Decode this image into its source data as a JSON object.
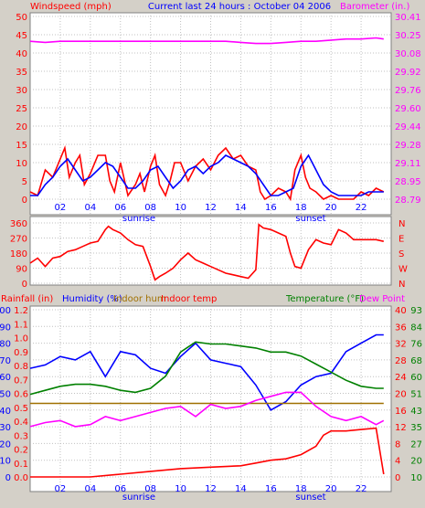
{
  "header": {
    "left": "Windspeed (mph)",
    "center": "Current last 24 hours : October 04 2006",
    "right": "Barometer (in.)"
  },
  "x_ticks": [
    "02",
    "04",
    "06",
    "08",
    "10",
    "12",
    "14",
    "16",
    "18",
    "20",
    "22"
  ],
  "sun_labels": {
    "sunrise": "sunrise",
    "sunset": "sunset"
  },
  "colors": {
    "red": "#ff0000",
    "blue": "#0000ff",
    "magenta": "#ff00ff",
    "green": "#008000",
    "olive": "#a07000",
    "bg": "#ffffff",
    "frame": "#d4d0c8"
  },
  "chart_data": [
    {
      "type": "line",
      "panel": "wind_barometer",
      "x_range_hours": [
        0,
        24
      ],
      "left_axis": {
        "label": "Windspeed (mph)",
        "ylim": [
          0,
          50
        ],
        "ticks": [
          "0",
          "5",
          "10",
          "15",
          "20",
          "25",
          "30",
          "35",
          "40",
          "45",
          "50"
        ]
      },
      "right_axis": {
        "label": "Barometer (in.)",
        "ylim": [
          28.79,
          30.41
        ],
        "ticks": [
          "28.79",
          "28.95",
          "29.11",
          "29.28",
          "29.44",
          "29.60",
          "29.76",
          "29.92",
          "30.08",
          "30.25",
          "30.41"
        ]
      },
      "series": [
        {
          "color": "red",
          "axis": "left",
          "x": [
            0,
            0.5,
            1,
            1.5,
            2,
            2.3,
            2.6,
            3,
            3.3,
            3.6,
            4,
            4.5,
            5,
            5.3,
            5.6,
            6,
            6.5,
            7,
            7.3,
            7.6,
            8,
            8.3,
            8.6,
            9,
            9.3,
            9.6,
            10,
            10.5,
            11,
            11.5,
            12,
            12.5,
            13,
            13.5,
            14,
            14.5,
            15,
            15.3,
            15.6,
            16,
            16.5,
            17,
            17.3,
            17.6,
            18,
            18.3,
            18.6,
            19,
            19.5,
            20,
            20.5,
            21,
            21.5,
            22,
            22.5,
            23,
            23.5
          ],
          "values": [
            2,
            1,
            8,
            6,
            11,
            14,
            6,
            10,
            12,
            4,
            7,
            12,
            12,
            5,
            2,
            10,
            1,
            4,
            7,
            2,
            9,
            12,
            4,
            1,
            5,
            10,
            10,
            5,
            9,
            11,
            8,
            12,
            14,
            11,
            12,
            9,
            8,
            2,
            0,
            1,
            3,
            2,
            0,
            8,
            12,
            6,
            3,
            2,
            0,
            1,
            0,
            0,
            0,
            2,
            1,
            3,
            2
          ]
        },
        {
          "color": "blue",
          "axis": "left",
          "x": [
            0,
            0.5,
            1,
            1.5,
            2,
            2.5,
            3,
            3.5,
            4,
            4.5,
            5,
            5.5,
            6,
            6.5,
            7,
            7.5,
            8,
            8.5,
            9,
            9.5,
            10,
            10.5,
            11,
            11.5,
            12,
            12.5,
            13,
            13.5,
            14,
            14.5,
            15,
            15.5,
            16,
            16.5,
            17,
            17.5,
            18,
            18.5,
            19,
            19.5,
            20,
            20.5,
            21,
            21.5,
            22,
            22.5,
            23,
            23.5
          ],
          "values": [
            1,
            1,
            4,
            6,
            9,
            11,
            8,
            5,
            6,
            8,
            10,
            9,
            6,
            3,
            3,
            5,
            8,
            9,
            6,
            3,
            5,
            8,
            9,
            7,
            9,
            10,
            12,
            11,
            10,
            9,
            7,
            4,
            1,
            1,
            2,
            3,
            9,
            12,
            8,
            4,
            2,
            1,
            1,
            1,
            1,
            2,
            2,
            2
          ]
        },
        {
          "color": "magenta",
          "axis": "right",
          "x": [
            0,
            1,
            2,
            4,
            6,
            8,
            10,
            12,
            13,
            14,
            15,
            16,
            17,
            18,
            19,
            20,
            21,
            22,
            23,
            23.5
          ],
          "values": [
            30.19,
            30.18,
            30.19,
            30.19,
            30.19,
            30.19,
            30.19,
            30.19,
            30.19,
            30.18,
            30.17,
            30.17,
            30.18,
            30.19,
            30.19,
            30.2,
            30.21,
            30.21,
            30.22,
            30.21
          ]
        }
      ]
    },
    {
      "type": "line",
      "panel": "wind_direction",
      "x_range_hours": [
        0,
        24
      ],
      "left_axis": {
        "ylim": [
          0,
          360
        ],
        "ticks": [
          "0",
          "90",
          "180",
          "270",
          "360"
        ]
      },
      "right_axis": {
        "ticks": [
          "N",
          "E",
          "S",
          "W",
          "N"
        ]
      },
      "series": [
        {
          "color": "red",
          "x": [
            0,
            0.5,
            1,
            1.5,
            2,
            2.5,
            3,
            3.5,
            4,
            4.5,
            5,
            5.2,
            5.5,
            6,
            6.5,
            7,
            7.5,
            8,
            8.3,
            8.6,
            9,
            9.5,
            10,
            10.5,
            11,
            11.5,
            12,
            12.5,
            13,
            13.5,
            14,
            14.5,
            15,
            15.2,
            15.5,
            16,
            16.5,
            17,
            17.3,
            17.6,
            18,
            18.5,
            19,
            19.5,
            20,
            20.5,
            21,
            21.5,
            22,
            23,
            23.5
          ],
          "values": [
            120,
            150,
            100,
            150,
            160,
            190,
            200,
            220,
            240,
            250,
            320,
            340,
            320,
            300,
            260,
            230,
            220,
            100,
            20,
            40,
            60,
            90,
            140,
            180,
            140,
            120,
            100,
            80,
            60,
            50,
            40,
            30,
            80,
            350,
            330,
            320,
            300,
            280,
            180,
            100,
            90,
            200,
            260,
            240,
            230,
            320,
            300,
            260,
            260,
            260,
            250
          ]
        }
      ]
    },
    {
      "type": "line",
      "panel": "rain_humidity_temperature",
      "x_range_hours": [
        0,
        24
      ],
      "axes_labels": [
        "Rainfall (in)",
        "Humidity (%)",
        "Indoor hum",
        "Indoor temp",
        "Temperature (°F)",
        "Dew Point"
      ],
      "rain_axis": {
        "ylim": [
          0,
          1.2
        ],
        "ticks": [
          "0.0",
          "0.1",
          "0.2",
          "0.3",
          "0.4",
          "0.5",
          "0.6",
          "0.7",
          "0.8",
          "0.9",
          "1.0",
          "1.1",
          "1.2"
        ]
      },
      "humidity_axis": {
        "ylim": [
          0,
          100
        ],
        "ticks": [
          "0",
          "10",
          "20",
          "30",
          "40",
          "50",
          "60",
          "70",
          "80",
          "90",
          "100"
        ]
      },
      "temperature_axis": {
        "ylim": [
          10,
          93
        ],
        "ticks": [
          "10",
          "20",
          "27",
          "35",
          "43",
          "51",
          "60",
          "68",
          "76",
          "84",
          "93"
        ]
      },
      "temperature_axis_b": {
        "ylim": [
          0,
          40
        ],
        "ticks": [
          "0",
          "4",
          "8",
          "12",
          "16",
          "20",
          "24",
          "28",
          "32",
          "36",
          "40"
        ]
      },
      "series": [
        {
          "name": "Rainfall (in)",
          "color": "red",
          "x": [
            0,
            4,
            6,
            8,
            10,
            12,
            14,
            15,
            16,
            17,
            18,
            19,
            19.5,
            20,
            21,
            22,
            23,
            23.5
          ],
          "values": [
            0,
            0,
            0.02,
            0.04,
            0.06,
            0.07,
            0.08,
            0.1,
            0.12,
            0.13,
            0.16,
            0.22,
            0.3,
            0.33,
            0.33,
            0.34,
            0.35,
            0.02
          ]
        },
        {
          "name": "Humidity (%)",
          "color": "blue",
          "x": [
            0,
            1,
            2,
            3,
            4,
            5,
            6,
            7,
            8,
            9,
            10,
            11,
            12,
            13,
            14,
            15,
            16,
            17,
            18,
            19,
            20,
            21,
            22,
            23,
            23.5
          ],
          "values": [
            65,
            67,
            72,
            70,
            75,
            60,
            75,
            73,
            65,
            62,
            72,
            80,
            70,
            68,
            66,
            55,
            40,
            45,
            55,
            60,
            62,
            75,
            80,
            85,
            85
          ]
        },
        {
          "name": "Indoor hum",
          "color": "olive",
          "x": [
            0,
            4,
            8,
            12,
            16,
            20,
            23.5
          ],
          "values": [
            44,
            44,
            44,
            44,
            44,
            44,
            44
          ]
        },
        {
          "name": "Temperature (°F)",
          "color": "green",
          "x": [
            0,
            1,
            2,
            3,
            4,
            5,
            6,
            7,
            8,
            9,
            10,
            11,
            12,
            13,
            14,
            15,
            16,
            17,
            18,
            19,
            20,
            21,
            22,
            23,
            23.5
          ],
          "values": [
            51,
            53,
            55,
            56,
            56,
            55,
            53,
            52,
            54,
            60,
            72,
            77,
            76,
            76,
            75,
            74,
            72,
            72,
            70,
            66,
            62,
            58,
            55,
            54,
            54
          ]
        },
        {
          "name": "Dew Point",
          "color": "magenta",
          "x": [
            0,
            1,
            2,
            3,
            4,
            5,
            6,
            7,
            8,
            9,
            10,
            11,
            12,
            13,
            14,
            15,
            16,
            17,
            18,
            19,
            20,
            21,
            22,
            23,
            23.5
          ],
          "values": [
            35,
            37,
            38,
            35,
            36,
            40,
            38,
            40,
            42,
            44,
            45,
            40,
            46,
            44,
            45,
            48,
            50,
            52,
            52,
            45,
            40,
            38,
            40,
            36,
            38
          ]
        }
      ]
    }
  ]
}
